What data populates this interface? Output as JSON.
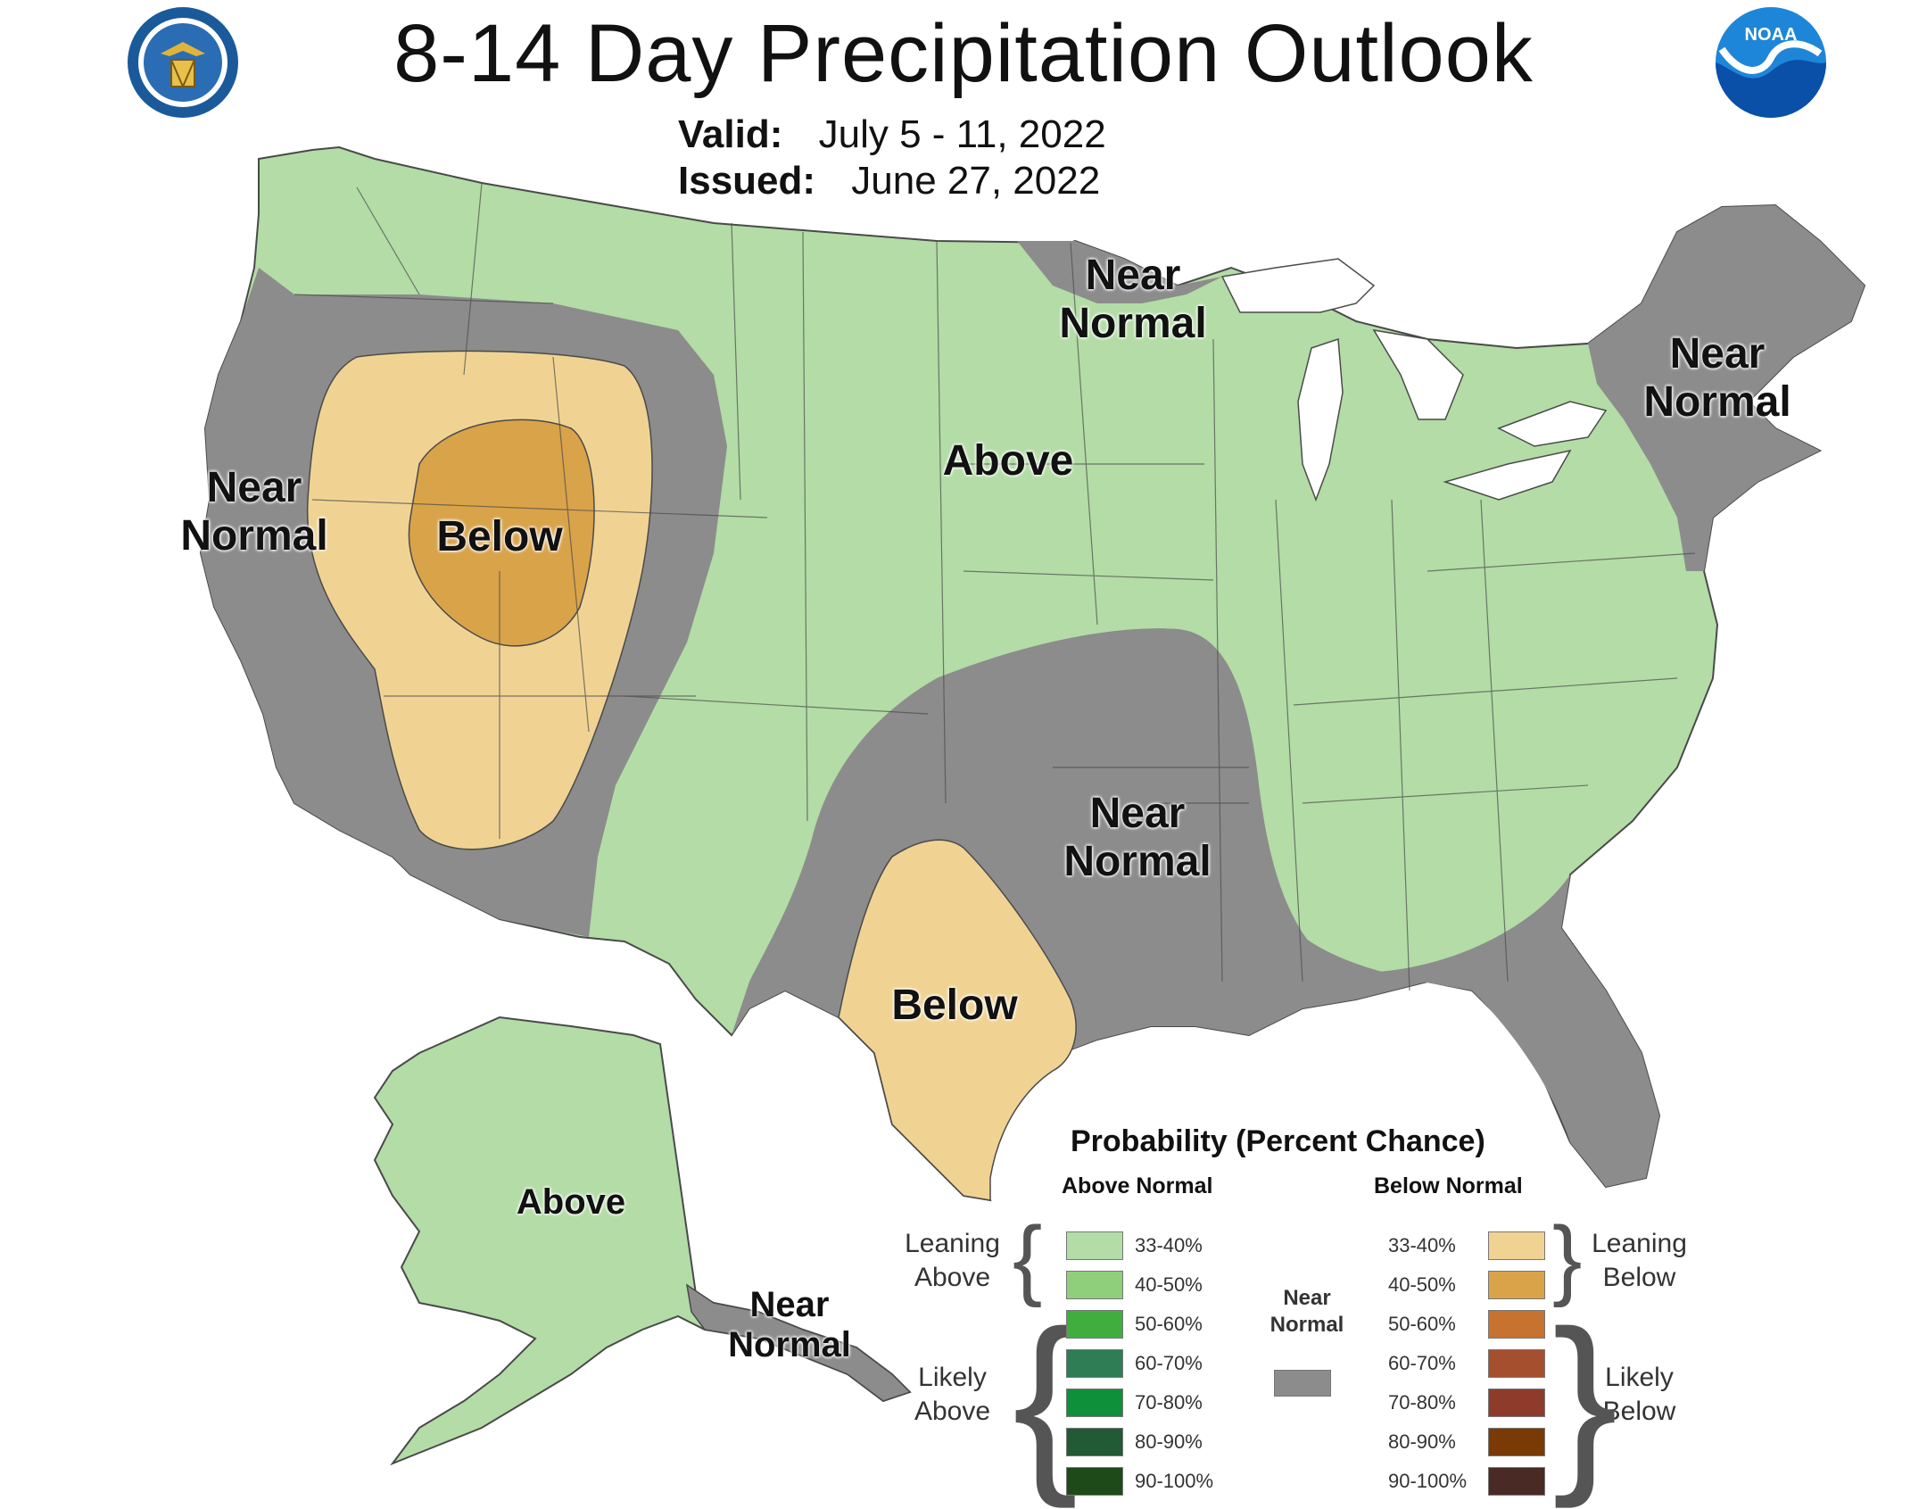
{
  "header": {
    "title": "8-14 Day Precipitation Outlook",
    "valid_label": "Valid:",
    "valid_value": "July 5 - 11, 2022",
    "issued_label": "Issued:",
    "issued_value": "June 27, 2022"
  },
  "logos": {
    "left": "department-of-commerce-seal",
    "right": "noaa-logo",
    "right_text": "NOAA"
  },
  "regions": [
    {
      "id": "west-coast",
      "text": "Near Normal",
      "category": "near-normal"
    },
    {
      "id": "great-basin",
      "text": "Below",
      "category": "below-40-50"
    },
    {
      "id": "plains",
      "text": "Above",
      "category": "above-33-40"
    },
    {
      "id": "upper-midwest",
      "text": "Near Normal",
      "category": "near-normal"
    },
    {
      "id": "northeast",
      "text": "Near Normal",
      "category": "near-normal"
    },
    {
      "id": "south-central",
      "text": "Near Normal",
      "category": "near-normal"
    },
    {
      "id": "texas",
      "text": "Below",
      "category": "below-33-40"
    },
    {
      "id": "alaska",
      "text": "Above",
      "category": "above-33-40"
    },
    {
      "id": "alaska-southeast",
      "text": "Near Normal",
      "category": "near-normal"
    }
  ],
  "colors": {
    "near_normal": "#8c8c8c",
    "above_33_40": "#b3dca6",
    "below_33_40": "#f0d393",
    "below_40_50": "#d9a34a",
    "border": "#4a4a4a",
    "lakes": "#ffffff"
  },
  "legend": {
    "title": "Probability (Percent Chance)",
    "above_header": "Above Normal",
    "below_header": "Below Normal",
    "near_label": "Near Normal",
    "near_color": "#8c8c8c",
    "leaning_above": "Leaning Above",
    "likely_above": "Likely Above",
    "leaning_below": "Leaning Below",
    "likely_below": "Likely Below",
    "above": [
      {
        "range": "33-40%",
        "color": "#b3dca6"
      },
      {
        "range": "40-50%",
        "color": "#8fcf7c"
      },
      {
        "range": "50-60%",
        "color": "#3fae3f"
      },
      {
        "range": "60-70%",
        "color": "#2e7d55"
      },
      {
        "range": "70-80%",
        "color": "#0e8f3a"
      },
      {
        "range": "80-90%",
        "color": "#215a35"
      },
      {
        "range": "90-100%",
        "color": "#1e4a1a"
      }
    ],
    "below": [
      {
        "range": "33-40%",
        "color": "#f0d393"
      },
      {
        "range": "40-50%",
        "color": "#d9a34a"
      },
      {
        "range": "50-60%",
        "color": "#c8722f"
      },
      {
        "range": "60-70%",
        "color": "#a54f2e"
      },
      {
        "range": "70-80%",
        "color": "#8e3b2c"
      },
      {
        "range": "80-90%",
        "color": "#7a3a05"
      },
      {
        "range": "90-100%",
        "color": "#4a2a24"
      }
    ]
  }
}
